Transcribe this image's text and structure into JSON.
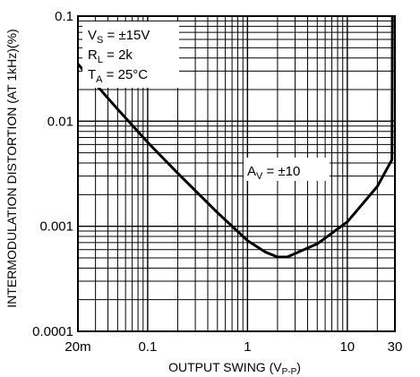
{
  "chart_data": {
    "type": "line",
    "xlabel": "OUTPUT SWING (V",
    "xlabel_sub": "P-P",
    "xlabel_close": ")",
    "ylabel": "INTERMODULATION DISTORTION (AT 1kHz)(%)",
    "x_scale": "log",
    "y_scale": "log",
    "xlim": [
      0.02,
      30
    ],
    "ylim": [
      0.0001,
      0.1
    ],
    "grid": true,
    "x_ticks": [
      {
        "value": 0.02,
        "label": "20m"
      },
      {
        "value": 0.1,
        "label": "0.1"
      },
      {
        "value": 1,
        "label": "1"
      },
      {
        "value": 10,
        "label": "10"
      },
      {
        "value": 30,
        "label": "30"
      }
    ],
    "y_ticks": [
      {
        "value": 0.1,
        "label": "0.1"
      },
      {
        "value": 0.01,
        "label": "0.01"
      },
      {
        "value": 0.001,
        "label": "0.001"
      },
      {
        "value": 0.0001,
        "label": "0.0001"
      }
    ],
    "conditions": {
      "line1": {
        "main": "V",
        "sub": "S",
        "rest": " = ±15V"
      },
      "line2": {
        "main": "R",
        "sub": "L",
        "rest": " = 2k"
      },
      "line3": {
        "main": "T",
        "sub": "A",
        "rest": " = 25°C"
      }
    },
    "series": [
      {
        "label": {
          "main": "A",
          "sub": "V",
          "rest": " = ±10"
        },
        "points": [
          {
            "x": 0.02,
            "y": 0.035
          },
          {
            "x": 0.05,
            "y": 0.013
          },
          {
            "x": 0.1,
            "y": 0.0063
          },
          {
            "x": 0.2,
            "y": 0.0032
          },
          {
            "x": 0.5,
            "y": 0.00135
          },
          {
            "x": 1,
            "y": 0.00073
          },
          {
            "x": 1.5,
            "y": 0.00057
          },
          {
            "x": 2,
            "y": 0.00051
          },
          {
            "x": 2.5,
            "y": 0.00051
          },
          {
            "x": 3,
            "y": 0.00055
          },
          {
            "x": 5,
            "y": 0.00068
          },
          {
            "x": 10,
            "y": 0.0011
          },
          {
            "x": 20,
            "y": 0.0024
          },
          {
            "x": 28,
            "y": 0.0043
          },
          {
            "x": 28.3,
            "y": 0.1
          }
        ]
      }
    ]
  }
}
